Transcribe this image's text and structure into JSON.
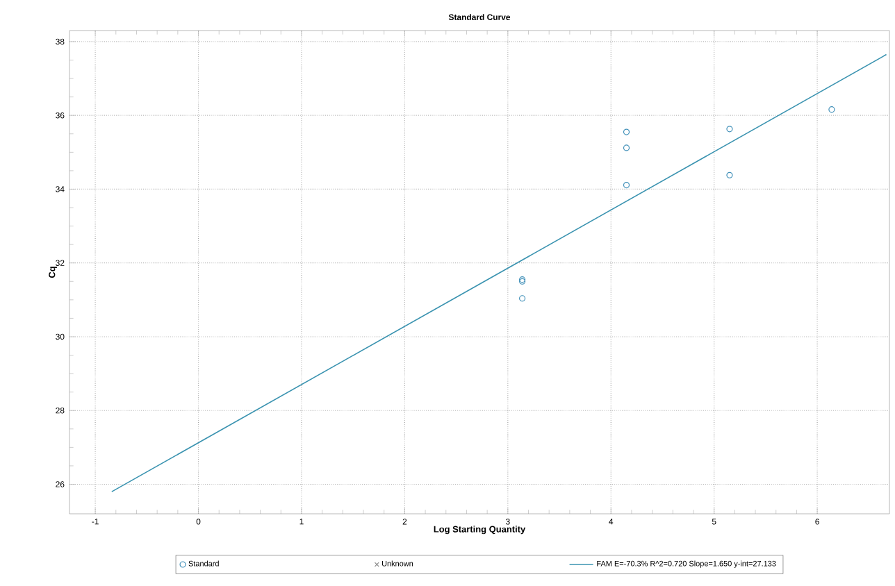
{
  "chart_data": {
    "type": "scatter",
    "title": "Standard Curve",
    "xlabel": "Log Starting Quantity",
    "ylabel": "Cq",
    "xlim": [
      -1.25,
      6.7
    ],
    "ylim": [
      25.2,
      38.3
    ],
    "xticks": [
      -1,
      0,
      1,
      2,
      3,
      4,
      5,
      6
    ],
    "yticks": [
      26,
      28,
      30,
      32,
      34,
      36,
      38
    ],
    "grid": true,
    "legend": "bottom",
    "series": [
      {
        "name": "Standard",
        "marker": "circle",
        "color": "#3f8fb8",
        "x": [
          3.14,
          3.14,
          3.14,
          4.15,
          4.15,
          4.15,
          5.15,
          5.15,
          6.14
        ],
        "values": [
          31.55,
          31.5,
          31.04,
          35.55,
          35.12,
          34.11,
          35.63,
          34.38,
          36.16
        ]
      },
      {
        "name": "Unknown",
        "type": "scatter",
        "marker": "cross",
        "color": "#8a8a8a"
      },
      {
        "name": "FAM     E=-70.3% R^2=0.720 Slope=1.650 y-int=27.133",
        "type": "line",
        "marker": "none",
        "color": "#3a93b0",
        "x": [
          -0.84,
          6.67
        ],
        "values": [
          25.8,
          37.65
        ]
      }
    ]
  }
}
